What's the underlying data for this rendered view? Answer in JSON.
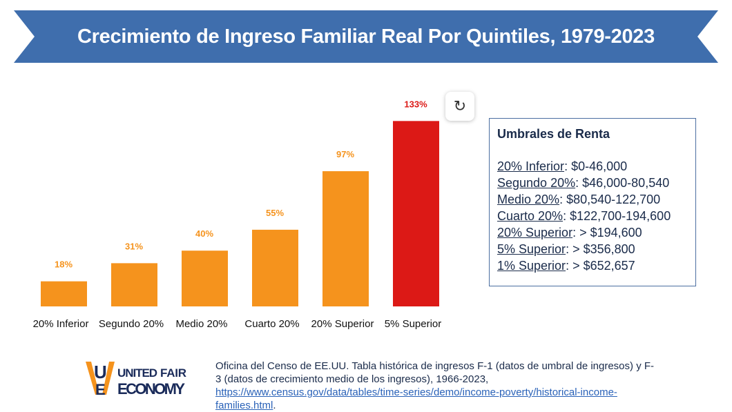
{
  "header": {
    "title": "Crecimiento de Ingreso Familiar Real Por Quintiles, 1979-2023"
  },
  "colors": {
    "banner": "#3f6ead",
    "bar": "#f5931d",
    "bar_highlight": "#dc1916"
  },
  "chart_data": {
    "type": "bar",
    "categories": [
      "20% Inferior",
      "Segundo 20%",
      "Medio 20%",
      "Cuarto 20%",
      "20% Superior",
      "5% Superior"
    ],
    "values": [
      18,
      31,
      40,
      55,
      97,
      133
    ],
    "labels": [
      "18%",
      "31%",
      "40%",
      "55%",
      "97%",
      "133%"
    ],
    "highlight_index": 5,
    "ylim": [
      0,
      140
    ],
    "grid": false
  },
  "toolbar": {
    "refresh_icon": "refresh-icon"
  },
  "legend": {
    "title": "Umbrales de Renta",
    "rows": [
      {
        "label": "20% Inferior",
        "value": ": $0-46,000"
      },
      {
        "label": "Segundo 20%",
        "value": ": $46,000-80,540"
      },
      {
        "label": "Medio 20%",
        "value": ": $80,540-122,700"
      },
      {
        "label": "Cuarto 20%",
        "value": ": $122,700-194,600"
      },
      {
        "label": "20% Superior",
        "value": ": > $194,600"
      },
      {
        "label": "5% Superior",
        "value": ": > $356,800"
      },
      {
        "label": "1% Superior",
        "value": ": > $652,657"
      }
    ]
  },
  "footer": {
    "logo_text": "UNITED FOR A FAIR ECONOMY",
    "source_text": "Oficina del Censo de EE.UU. Tabla histórica de ingresos F-1 (datos de umbral de ingresos) y F-3 (datos de crecimiento medio de los ingresos), 1966-2023, ",
    "source_link": "https://www.census.gov/data/tables/time-series/demo/income-poverty/historical-income-families.html",
    "source_end": "."
  }
}
